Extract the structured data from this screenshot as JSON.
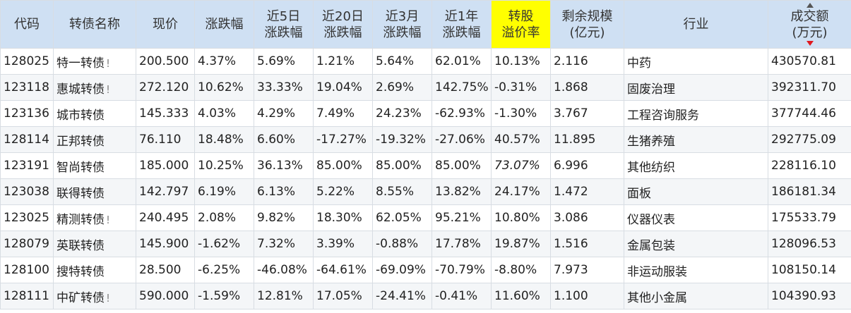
{
  "columns": {
    "code": "代码",
    "name": "转债名称",
    "price": "现价",
    "change": "涨跌幅",
    "d5_a": "近5日",
    "d5_b": "涨跌幅",
    "d20_a": "近20日",
    "d20_b": "涨跌幅",
    "m3_a": "近3月",
    "m3_b": "涨跌幅",
    "y1_a": "近1年",
    "y1_b": "涨跌幅",
    "premium_a": "转股",
    "premium_b": "溢价率",
    "remain_a": "剩余规模",
    "remain_b": "(亿元)",
    "industry": "行业",
    "volume_a": "成交额",
    "volume_b": "(万元)"
  },
  "colors": {
    "up": "#e0191f",
    "down": "#1a8a1a",
    "code": "#1f5ea8",
    "header_bg": "#cfe0f3",
    "highlight": "#ffff00"
  },
  "rows": [
    {
      "code": "128025",
      "name": "特一转债",
      "flag": "!",
      "price": "200.500",
      "change": "4.37%",
      "d5": "5.69%",
      "d20": "1.21%",
      "m3": "5.64%",
      "y1": "62.01%",
      "premium": "10.13%",
      "remain": "2.116",
      "industry": "中药",
      "volume": "430570.81"
    },
    {
      "code": "123118",
      "name": "惠城转债",
      "flag": "!",
      "price": "272.120",
      "change": "10.62%",
      "d5": "33.33%",
      "d20": "19.04%",
      "m3": "2.69%",
      "y1": "142.75%",
      "premium": "-0.31%",
      "remain": "1.868",
      "industry": "固废治理",
      "volume": "392311.70"
    },
    {
      "code": "123136",
      "name": "城市转债",
      "flag": "",
      "price": "145.333",
      "change": "4.03%",
      "d5": "4.29%",
      "d20": "7.49%",
      "m3": "24.23%",
      "y1": "-62.93%",
      "premium": "-1.30%",
      "remain": "3.767",
      "industry": "工程咨询服务",
      "volume": "377744.46"
    },
    {
      "code": "128114",
      "name": "正邦转债",
      "flag": "",
      "price": "76.110",
      "change": "18.48%",
      "d5": "6.60%",
      "d20": "-17.27%",
      "m3": "-19.32%",
      "y1": "-27.06%",
      "premium": "40.57%",
      "remain": "11.895",
      "industry": "生猪养殖",
      "volume": "292775.09"
    },
    {
      "code": "123191",
      "name": "智尚转债",
      "flag": "",
      "price": "185.000",
      "change": "10.25%",
      "d5": "36.13%",
      "d20": "85.00%",
      "m3": "85.00%",
      "y1": "85.00%",
      "premium": "73.07%",
      "remain": "6.996",
      "industry": "其他纺织",
      "volume": "228116.10"
    },
    {
      "code": "123038",
      "name": "联得转债",
      "flag": "",
      "price": "142.797",
      "change": "6.19%",
      "d5": "6.13%",
      "d20": "5.22%",
      "m3": "8.55%",
      "y1": "13.82%",
      "premium": "24.17%",
      "remain": "1.472",
      "industry": "面板",
      "volume": "186181.34"
    },
    {
      "code": "123025",
      "name": "精测转债",
      "flag": "!",
      "price": "240.495",
      "change": "2.08%",
      "d5": "9.82%",
      "d20": "18.30%",
      "m3": "62.05%",
      "y1": "95.21%",
      "premium": "10.80%",
      "remain": "3.086",
      "industry": "仪器仪表",
      "volume": "175533.79"
    },
    {
      "code": "128079",
      "name": "英联转债",
      "flag": "",
      "price": "145.900",
      "change": "-1.62%",
      "d5": "7.32%",
      "d20": "3.39%",
      "m3": "-0.88%",
      "y1": "17.78%",
      "premium": "19.87%",
      "remain": "1.516",
      "industry": "金属包装",
      "volume": "128096.53"
    },
    {
      "code": "128100",
      "name": "搜特转债",
      "flag": "",
      "price": "28.500",
      "change": "-6.25%",
      "d5": "-46.08%",
      "d20": "-64.61%",
      "m3": "-69.09%",
      "y1": "-70.79%",
      "premium": "-8.80%",
      "remain": "7.973",
      "industry": "非运动服装",
      "volume": "108150.14"
    },
    {
      "code": "128111",
      "name": "中矿转债",
      "flag": "!",
      "price": "590.000",
      "change": "-1.59%",
      "d5": "12.81%",
      "d20": "17.05%",
      "m3": "-24.41%",
      "y1": "-0.41%",
      "premium": "11.60%",
      "remain": "1.100",
      "industry": "其他小金属",
      "volume": "104390.93"
    }
  ]
}
